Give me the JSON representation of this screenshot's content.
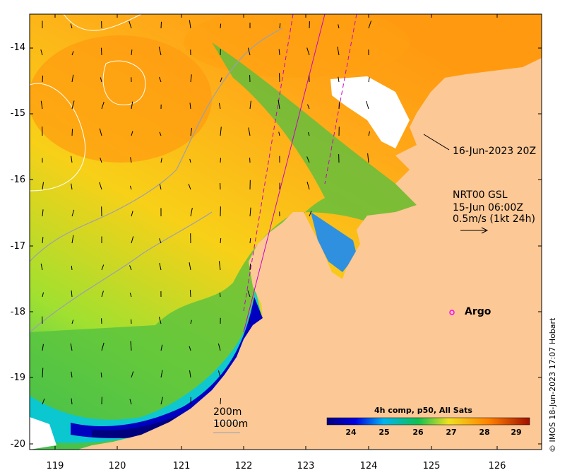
{
  "map": {
    "y_ticks": [
      "-14",
      "-15",
      "-16",
      "-17",
      "-18",
      "-19",
      "-20"
    ],
    "x_ticks": [
      "119",
      "120",
      "121",
      "122",
      "123",
      "124",
      "125",
      "126"
    ]
  },
  "annotations": {
    "pass_time": "16-Jun-2023 20Z",
    "currents_source": "NRT00 GSL",
    "currents_time": "15-Jun 06:00Z",
    "currents_scale": "0.5m/s (1kt 24h)",
    "argo_label": "Argo",
    "contour_200": "200m",
    "contour_1000": "1000m"
  },
  "colorbar": {
    "title": "4h comp, p50, All Sats",
    "ticks": [
      "24",
      "25",
      "26",
      "27",
      "28",
      "29"
    ],
    "colors": {
      "c23": "#00007f",
      "c24": "#0000e0",
      "c25": "#00b4f0",
      "c26": "#10c050",
      "c27": "#f0e020",
      "c28": "#ff8000",
      "c29": "#a01000"
    }
  },
  "colors": {
    "land": "#fcc896",
    "argo": "#ff00ff",
    "track": "#cc00cc"
  },
  "credit": "© IMOS 18-Jun-2023 17:07 Hobart"
}
